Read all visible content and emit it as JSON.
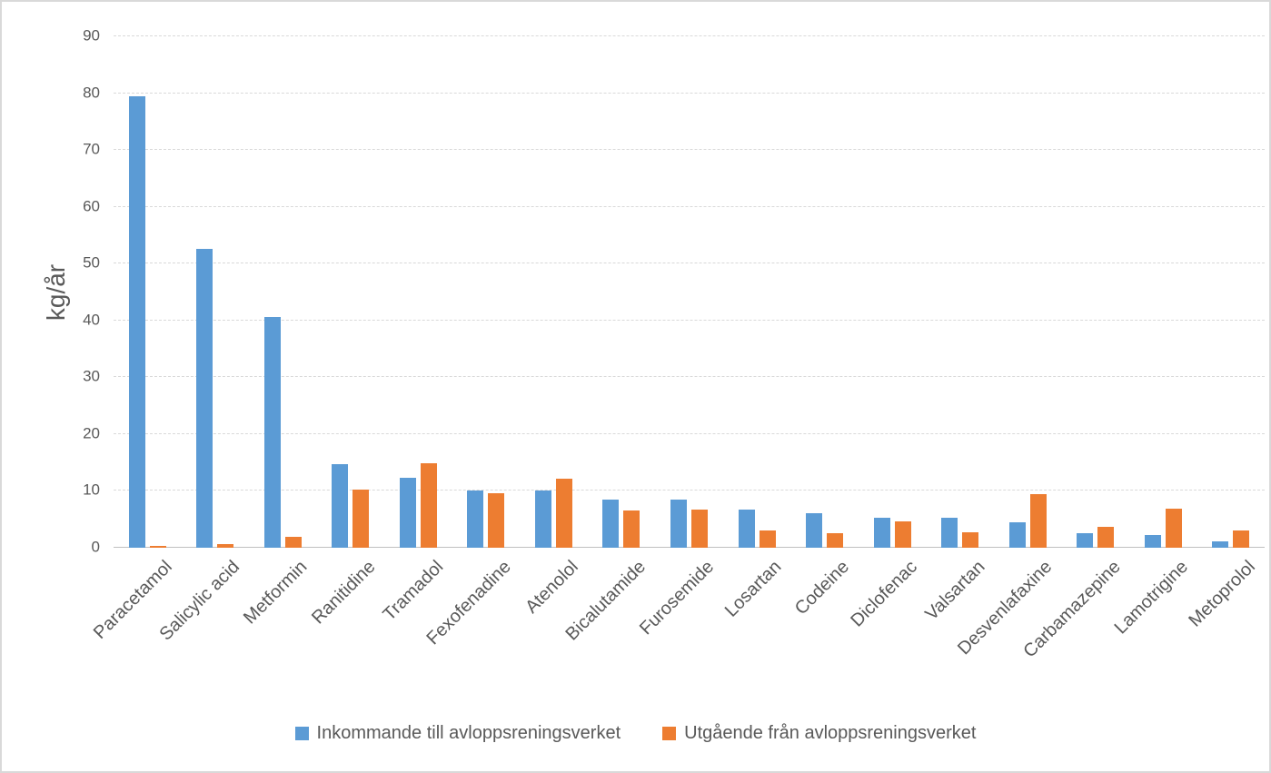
{
  "chart_data": {
    "type": "bar",
    "title": "",
    "xlabel": "",
    "ylabel": "kg/år",
    "ylim": [
      0,
      90
    ],
    "ytick_step": 10,
    "ytick_labels": [
      "0",
      "10",
      "20",
      "30",
      "40",
      "50",
      "60",
      "70",
      "80",
      "90"
    ],
    "grid": true,
    "legend_position": "bottom-center",
    "categories": [
      "Paracetamol",
      "Salicylic acid",
      "Metformin",
      "Ranitidine",
      "Tramadol",
      "Fexofenadine",
      "Atenolol",
      "Bicalutamide",
      "Furosemide",
      "Losartan",
      "Codeine",
      "Diclofenac",
      "Valsartan",
      "Desvenlafaxine",
      "Carbamazepine",
      "Lamotrigine",
      "Metoprolol"
    ],
    "series": [
      {
        "name": "Inkommande till avloppsreningsverket",
        "color": "#5B9BD5",
        "values": [
          79.4,
          52.6,
          40.6,
          14.7,
          12.3,
          10.1,
          10.0,
          8.5,
          8.4,
          6.7,
          6.1,
          5.3,
          5.2,
          4.4,
          2.5,
          2.2,
          1.2
        ]
      },
      {
        "name": "Utgående från avloppsreningsverket",
        "color": "#ED7D31",
        "values": [
          0.4,
          0.6,
          2.0,
          10.3,
          14.8,
          9.6,
          12.2,
          6.5,
          6.7,
          3.0,
          2.5,
          4.7,
          2.8,
          9.4,
          3.6,
          6.9,
          3.1
        ]
      }
    ]
  },
  "style_colors": {
    "text_gray": "#595959",
    "gridline": "#D9D9D9",
    "axis_line": "#BFBFBF",
    "background": "#FFFFFF"
  }
}
